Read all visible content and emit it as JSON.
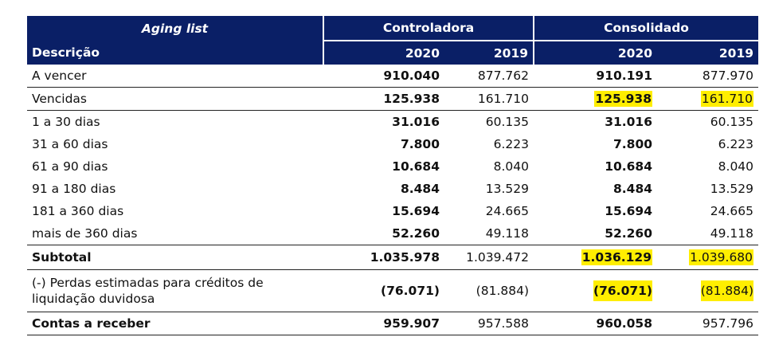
{
  "table": {
    "title": "Aging list",
    "group_controladora": "Controladora",
    "group_consolidado": "Consolidado",
    "desc_header": "Descrição",
    "years": [
      "2020",
      "2019",
      "2020",
      "2019"
    ],
    "rows": [
      {
        "label": "A vencer",
        "values": [
          "910.040",
          "877.762",
          "910.191",
          "877.970"
        ]
      },
      {
        "label": "Vencidas",
        "values": [
          "125.938",
          "161.710",
          "125.938",
          "161.710"
        ]
      },
      {
        "label": "1 a 30 dias",
        "values": [
          "31.016",
          "60.135",
          "31.016",
          "60.135"
        ]
      },
      {
        "label": "31 a 60 dias",
        "values": [
          "7.800",
          "6.223",
          "7.800",
          "6.223"
        ]
      },
      {
        "label": "61 a 90 dias",
        "values": [
          "10.684",
          "8.040",
          "10.684",
          "8.040"
        ]
      },
      {
        "label": "91 a 180 dias",
        "values": [
          "8.484",
          "13.529",
          "8.484",
          "13.529"
        ]
      },
      {
        "label": "181 a 360 dias",
        "values": [
          "15.694",
          "24.665",
          "15.694",
          "24.665"
        ]
      },
      {
        "label": "mais de 360 dias",
        "values": [
          "52.260",
          "49.118",
          "52.260",
          "49.118"
        ]
      },
      {
        "label": "Subtotal",
        "values": [
          "1.035.978",
          "1.039.472",
          "1.036.129",
          "1.039.680"
        ]
      },
      {
        "label": "(-) Perdas estimadas para créditos de liquidação duvidosa",
        "values": [
          "(76.071)",
          "(81.884)",
          "(76.071)",
          "(81.884)"
        ]
      },
      {
        "label": "Contas a receber",
        "values": [
          "959.907",
          "957.588",
          "960.058",
          "957.796"
        ]
      }
    ]
  },
  "colors": {
    "header_bg": "#0a1f66",
    "header_text": "#ffffff",
    "highlight": "#ffee00"
  }
}
